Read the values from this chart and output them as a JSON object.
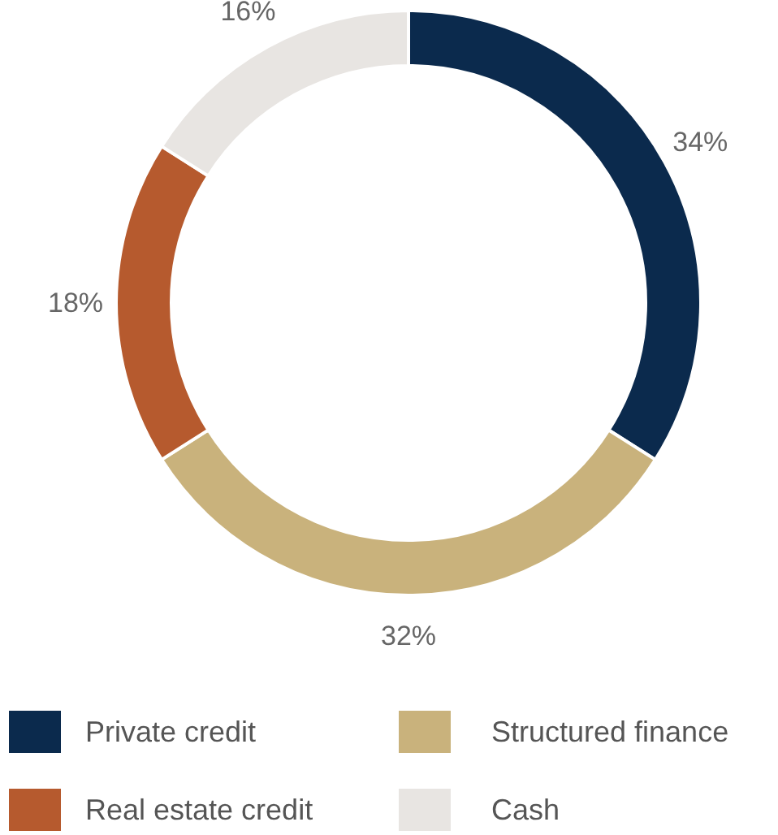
{
  "chart_data": {
    "type": "donut",
    "categories": [
      "Private credit",
      "Structured finance",
      "Real estate credit",
      "Cash"
    ],
    "values": [
      34,
      32,
      18,
      16
    ],
    "colors": [
      "#0b2a4d",
      "#c9b27c",
      "#b65a2e",
      "#e8e5e2"
    ],
    "value_labels": [
      "34%",
      "32%",
      "18%",
      "16%"
    ],
    "legend": "bottom"
  }
}
